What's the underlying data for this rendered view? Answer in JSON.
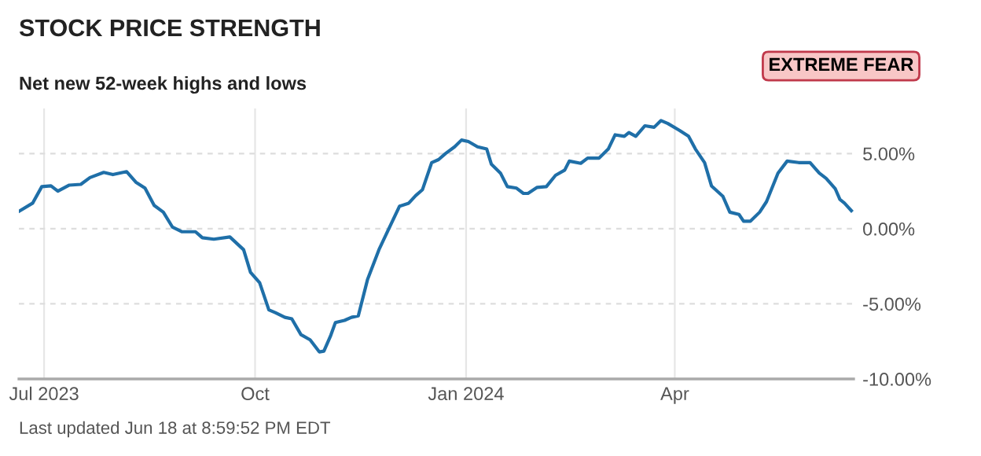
{
  "chart_data": {
    "type": "line",
    "title": "STOCK PRICE STRENGTH",
    "subtitle": "Net new 52-week highs and lows",
    "annotations": [
      "EXTREME FEAR",
      "Last updated Jun 18 at 8:59:52 PM EDT"
    ],
    "x": [
      "2023-06-20",
      "2023-06-26",
      "2023-06-30",
      "2023-07-04",
      "2023-07-07",
      "2023-07-12",
      "2023-07-17",
      "2023-07-21",
      "2023-07-27",
      "2023-07-31",
      "2023-08-06",
      "2023-08-10",
      "2023-08-14",
      "2023-08-18",
      "2023-08-22",
      "2023-08-26",
      "2023-08-30",
      "2023-09-05",
      "2023-09-08",
      "2023-09-13",
      "2023-09-20",
      "2023-09-26",
      "2023-09-29",
      "2023-10-03",
      "2023-10-07",
      "2023-10-10",
      "2023-10-14",
      "2023-10-17",
      "2023-10-21",
      "2023-10-25",
      "2023-10-29",
      "2023-10-31",
      "2023-11-03",
      "2023-11-05",
      "2023-11-09",
      "2023-11-12",
      "2023-11-15",
      "2023-11-19",
      "2023-11-24",
      "2023-11-28",
      "2023-12-03",
      "2023-12-07",
      "2023-12-10",
      "2023-12-13",
      "2023-12-17",
      "2023-12-20",
      "2023-12-23",
      "2023-12-27",
      "2023-12-30",
      "2024-01-02",
      "2024-01-06",
      "2024-01-10",
      "2024-01-12",
      "2024-01-16",
      "2024-01-19",
      "2024-01-23",
      "2024-01-26",
      "2024-01-28",
      "2024-02-01",
      "2024-02-05",
      "2024-02-09",
      "2024-02-13",
      "2024-02-15",
      "2024-02-20",
      "2024-02-23",
      "2024-02-28",
      "2024-03-03",
      "2024-03-06",
      "2024-03-10",
      "2024-03-12",
      "2024-03-15",
      "2024-03-19",
      "2024-03-23",
      "2024-03-26",
      "2024-03-29",
      "2024-04-03",
      "2024-04-07",
      "2024-04-10",
      "2024-04-14",
      "2024-04-17",
      "2024-04-22",
      "2024-04-25",
      "2024-04-29",
      "2024-05-01",
      "2024-05-04",
      "2024-05-08",
      "2024-05-11",
      "2024-05-16",
      "2024-05-20",
      "2024-05-25",
      "2024-05-30",
      "2024-06-03",
      "2024-06-06",
      "2024-06-10",
      "2024-06-12",
      "2024-06-14",
      "2024-06-17"
    ],
    "series": [
      {
        "color": "#1f6fa8",
        "values": [
          1.15,
          1.7,
          2.8,
          2.85,
          2.5,
          2.9,
          2.95,
          3.4,
          3.75,
          3.6,
          3.8,
          3.1,
          2.7,
          1.55,
          1.1,
          0.1,
          -0.2,
          -0.2,
          -0.6,
          -0.7,
          -0.55,
          -1.4,
          -2.9,
          -3.6,
          -5.4,
          -5.6,
          -5.9,
          -6.0,
          -7.05,
          -7.4,
          -8.2,
          -8.15,
          -7.1,
          -6.25,
          -6.1,
          -5.9,
          -5.8,
          -3.4,
          -1.4,
          -0.1,
          1.5,
          1.7,
          2.2,
          2.6,
          4.4,
          4.6,
          5.0,
          5.45,
          5.9,
          5.8,
          5.45,
          5.3,
          4.3,
          3.7,
          2.8,
          2.7,
          2.35,
          2.35,
          2.75,
          2.8,
          3.55,
          3.9,
          4.5,
          4.35,
          4.7,
          4.7,
          5.3,
          6.25,
          6.15,
          6.4,
          6.15,
          6.85,
          6.75,
          7.2,
          7.0,
          6.55,
          6.15,
          5.3,
          4.4,
          2.85,
          2.15,
          1.1,
          0.95,
          0.5,
          0.5,
          1.1,
          1.8,
          3.7,
          4.5,
          4.4,
          4.4,
          3.7,
          3.35,
          2.65,
          1.95,
          1.7,
          1.2
        ]
      }
    ],
    "xlim": [
      "2023-06-20",
      "2024-06-18"
    ],
    "xticks": [
      {
        "value": "2023-07-01",
        "label": "Jul 2023"
      },
      {
        "value": "2023-10-01",
        "label": "Oct"
      },
      {
        "value": "2024-01-01",
        "label": "Jan 2024"
      },
      {
        "value": "2024-04-01",
        "label": "Apr"
      }
    ],
    "ylim": [
      -10,
      8
    ],
    "yticks": [
      {
        "value": 5,
        "label": "5.00%"
      },
      {
        "value": 0,
        "label": "0.00%"
      },
      {
        "value": -5,
        "label": "-5.00%"
      },
      {
        "value": -10,
        "label": "-10.00%"
      }
    ],
    "grid": true,
    "marker": "none",
    "line_style": "solid"
  }
}
